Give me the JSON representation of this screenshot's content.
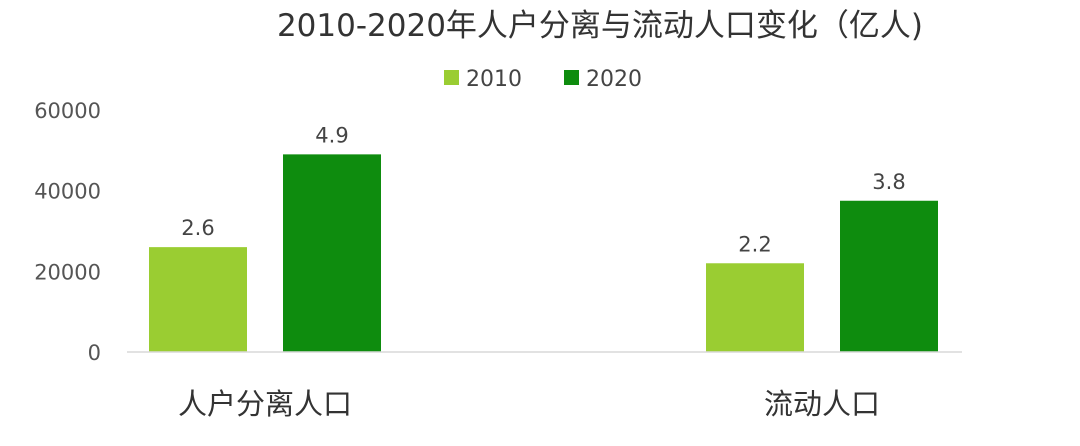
{
  "chart_data": {
    "type": "bar",
    "title": "2010-2020年人户分离与流动人口变化（亿人)",
    "categories": [
      "人户分离人口",
      "流动人口"
    ],
    "series": [
      {
        "name": "2010",
        "values": [
          26000,
          22000
        ],
        "labels": [
          "2.6",
          "2.2"
        ],
        "color": "#9ACD32"
      },
      {
        "name": "2020",
        "values": [
          49000,
          37500
        ],
        "labels": [
          "4.9",
          "3.8"
        ],
        "color": "#0E8C0E"
      }
    ],
    "yticks": [
      "0",
      "20000",
      "40000",
      "60000"
    ],
    "ylim": [
      0,
      60000
    ],
    "legend_position": "top-center",
    "grid": false
  }
}
